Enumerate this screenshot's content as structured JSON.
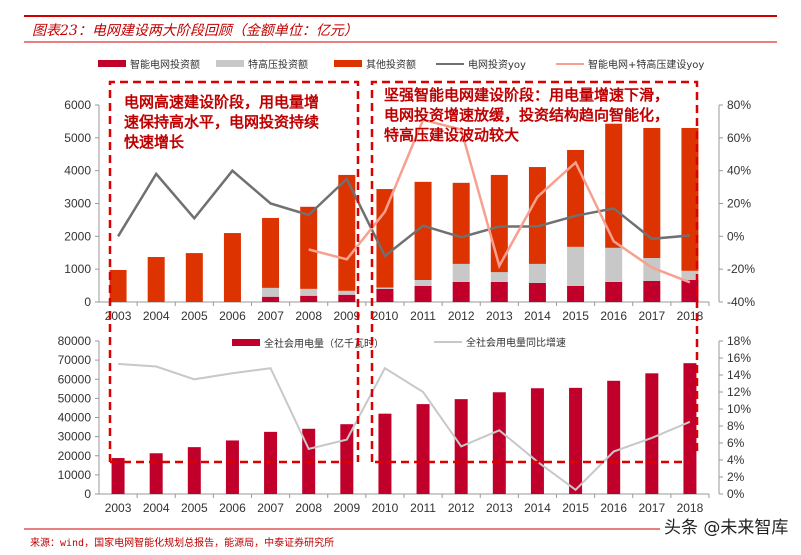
{
  "title": "图表23：电网建设两大阶段回顾（金额单位：亿元）",
  "source": "来源：wind，国家电网智能化规划总报告，能源局，中泰证券研究所",
  "watermark": "头条 @未来智库",
  "annotations": {
    "left": [
      "电网高速建设阶段，用电量增",
      "速保持高水平，电网投资持续",
      "快速增长"
    ],
    "right": [
      "坚强智能电网建设阶段：用电量增速下滑，",
      "电网投资增速放缓，投资结构趋向智能化，",
      "特高压建设波动较大"
    ]
  },
  "colors": {
    "smart": "#c0002a",
    "uhv": "#c8c8c8",
    "other": "#dd3300",
    "grid_yoy": "#707070",
    "smart_uhv_yoy": "#f8a090",
    "consumption": "#c0002a",
    "consumption_yoy": "#c8c8c8",
    "frame": "#dd0000"
  },
  "chart_data": [
    {
      "type": "bar",
      "stacked": true,
      "categories": [
        "2003",
        "2004",
        "2005",
        "2006",
        "2007",
        "2008",
        "2009",
        "2010",
        "2011",
        "2012",
        "2013",
        "2014",
        "2015",
        "2016",
        "2017",
        "2018"
      ],
      "ylim": [
        0,
        6000
      ],
      "yticks": [
        "0",
        "1000",
        "2000",
        "3000",
        "4000",
        "5000",
        "6000"
      ],
      "y2lim": [
        -40,
        80
      ],
      "y2ticks": [
        "-40%",
        "-20%",
        "0%",
        "20%",
        "40%",
        "60%",
        "80%"
      ],
      "legend_position": "top",
      "series": [
        {
          "name": "智能电网投资额",
          "kind": "bar",
          "values": [
            0,
            0,
            0,
            0,
            160,
            190,
            220,
            400,
            490,
            610,
            610,
            580,
            490,
            610,
            640,
            670
          ]
        },
        {
          "name": "特高压投资额",
          "kind": "bar",
          "values": [
            0,
            0,
            0,
            0,
            270,
            210,
            120,
            40,
            180,
            550,
            300,
            580,
            1190,
            1040,
            700,
            280
          ]
        },
        {
          "name": "其他投资额",
          "kind": "bar",
          "values": [
            975,
            1370,
            1490,
            2100,
            2130,
            2500,
            3530,
            3000,
            2990,
            2470,
            2960,
            2950,
            2950,
            3780,
            3960,
            4350
          ]
        },
        {
          "name": "电网投资yoy",
          "kind": "line",
          "axis": "right",
          "values": [
            0,
            38,
            11,
            40,
            20,
            13,
            35,
            -12,
            6.5,
            -0.5,
            6,
            6,
            12.5,
            17,
            -1.5,
            0.5
          ]
        },
        {
          "name": "智能电网+特高压建设yoy",
          "kind": "line",
          "axis": "right",
          "values": [
            null,
            null,
            null,
            null,
            null,
            -8,
            -14,
            15,
            71,
            65,
            -18,
            24,
            45,
            -3,
            -19,
            -28
          ]
        }
      ]
    },
    {
      "type": "bar",
      "categories": [
        "2003",
        "2004",
        "2005",
        "2006",
        "2007",
        "2008",
        "2009",
        "2010",
        "2011",
        "2012",
        "2013",
        "2014",
        "2015",
        "2016",
        "2017",
        "2018"
      ],
      "ylim": [
        0,
        80000
      ],
      "yticks": [
        "0",
        "10000",
        "20000",
        "30000",
        "40000",
        "50000",
        "60000",
        "70000",
        "80000"
      ],
      "y2lim": [
        0,
        18
      ],
      "y2ticks": [
        "0%",
        "2%",
        "4%",
        "6%",
        "8%",
        "10%",
        "12%",
        "14%",
        "16%",
        "18%"
      ],
      "legend_position": "top",
      "series": [
        {
          "name": "全社会用电量（亿千瓦时）",
          "kind": "bar",
          "values": [
            18800,
            21300,
            24500,
            28000,
            32500,
            34100,
            36500,
            42000,
            47000,
            49600,
            53200,
            55300,
            55500,
            59200,
            63100,
            68400
          ]
        },
        {
          "name": "全社会用电量同比增速",
          "kind": "line",
          "axis": "right",
          "values": [
            15.3,
            15,
            13.5,
            14.2,
            14.8,
            5.3,
            6.4,
            14.8,
            12,
            5.6,
            7.5,
            3.8,
            0.5,
            5,
            6.6,
            8.5
          ]
        }
      ]
    }
  ]
}
